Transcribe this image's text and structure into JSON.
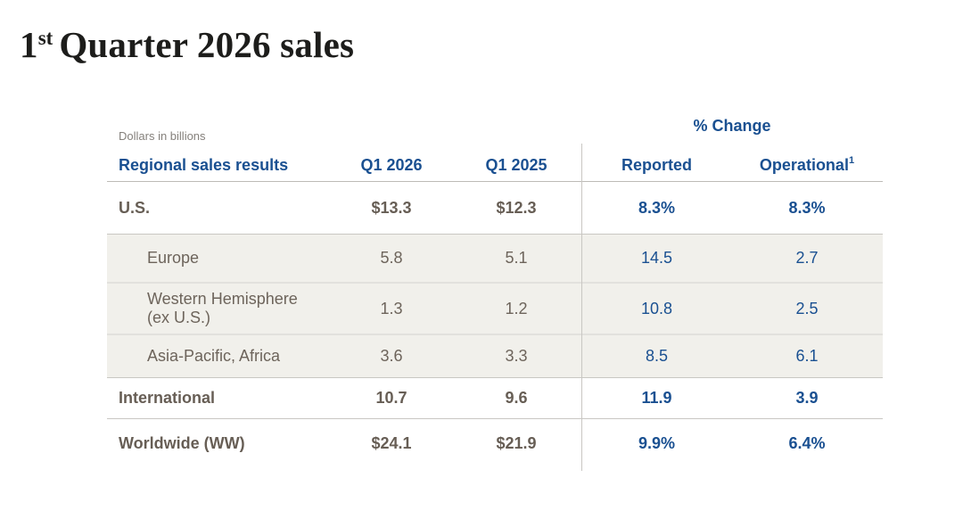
{
  "title": {
    "number": "1",
    "ordinal": "st",
    "rest": "Quarter 2026 sales"
  },
  "table": {
    "note": "Dollars in billions",
    "group_header": "% Change",
    "columns": {
      "label": "Regional sales results",
      "q1_2026": "Q1 2026",
      "q1_2025": "Q1 2025",
      "reported": "Reported",
      "operational": "Operational",
      "operational_footnote": "1"
    },
    "rows": [
      {
        "label": "U.S.",
        "q1_2026": "$13.3",
        "q1_2025": "$12.3",
        "reported": "8.3%",
        "operational": "8.3%"
      },
      {
        "label": "Europe",
        "q1_2026": "5.8",
        "q1_2025": "5.1",
        "reported": "14.5",
        "operational": "2.7"
      },
      {
        "label": "Western Hemisphere",
        "label_line2": "(ex U.S.)",
        "q1_2026": "1.3",
        "q1_2025": "1.2",
        "reported": "10.8",
        "operational": "2.5"
      },
      {
        "label": "Asia-Pacific, Africa",
        "q1_2026": "3.6",
        "q1_2025": "3.3",
        "reported": "8.5",
        "operational": "6.1"
      },
      {
        "label": "International",
        "q1_2026": "10.7",
        "q1_2025": "9.6",
        "reported": "11.9",
        "operational": "3.9"
      },
      {
        "label": "Worldwide (WW)",
        "q1_2026": "$24.1",
        "q1_2025": "$21.9",
        "reported": "9.9%",
        "operational": "6.4%"
      }
    ]
  },
  "colors": {
    "accent_blue": "#1a5091",
    "text_taupe": "#6d645b",
    "shaded_row_bg": "#f1f0eb",
    "border_gray": "#c9c7c3"
  },
  "chart_data": {
    "type": "table",
    "title": "1st Quarter 2026 sales",
    "note": "Dollars in billions",
    "columns": [
      "Regional sales results",
      "Q1 2026",
      "Q1 2025",
      "% Change Reported",
      "% Change Operational¹"
    ],
    "rows": [
      [
        "U.S.",
        13.3,
        12.3,
        8.3,
        8.3
      ],
      [
        "Europe",
        5.8,
        5.1,
        14.5,
        2.7
      ],
      [
        "Western Hemisphere (ex U.S.)",
        1.3,
        1.2,
        10.8,
        2.5
      ],
      [
        "Asia-Pacific, Africa",
        3.6,
        3.3,
        8.5,
        6.1
      ],
      [
        "International",
        10.7,
        9.6,
        11.9,
        3.9
      ],
      [
        "Worldwide (WW)",
        24.1,
        21.9,
        9.9,
        6.4
      ]
    ],
    "units": "USD billions; % change columns in percent",
    "layout": "sub-regions (Europe, Western Hemisphere, Asia-Pacific) shaded; U.S., International, Worldwide bold totals"
  }
}
